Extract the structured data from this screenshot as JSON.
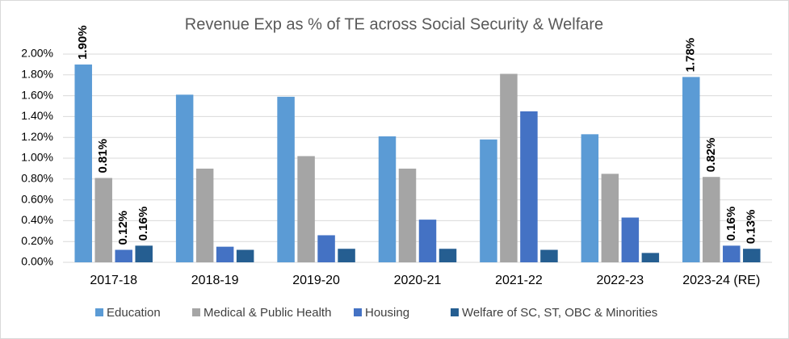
{
  "chart_data": {
    "type": "bar",
    "title": "Revenue  Exp as % of TE across Social Security & Welfare",
    "categories": [
      "2017-18",
      "2018-19",
      "2019-20",
      "2020-21",
      "2021-22",
      "2022-23",
      "2023-24 (RE)"
    ],
    "series": [
      {
        "name": "Education",
        "color": "#5b9bd5",
        "values": [
          1.9,
          1.61,
          1.59,
          1.21,
          1.18,
          1.23,
          1.78
        ],
        "value_labels": [
          "1.90%",
          null,
          null,
          null,
          null,
          null,
          "1.78%"
        ]
      },
      {
        "name": "Medical & Public Health",
        "color": "#a5a5a5",
        "values": [
          0.81,
          0.9,
          1.02,
          0.9,
          1.81,
          0.85,
          0.82
        ],
        "value_labels": [
          "0.81%",
          null,
          null,
          null,
          null,
          null,
          "0.82%"
        ]
      },
      {
        "name": "Housing",
        "color": "#4472c4",
        "values": [
          0.12,
          0.15,
          0.26,
          0.41,
          1.45,
          0.43,
          0.16
        ],
        "value_labels": [
          "0.12%",
          null,
          null,
          null,
          null,
          null,
          "0.16%"
        ]
      },
      {
        "name": "Welfare of SC, ST, OBC & Minorities",
        "color": "#255e91",
        "values": [
          0.16,
          0.12,
          0.13,
          0.13,
          0.12,
          0.09,
          0.13
        ],
        "value_labels": [
          "0.16%",
          null,
          null,
          null,
          null,
          null,
          "0.13%"
        ]
      }
    ],
    "ylim": [
      0,
      2.0
    ],
    "yticks": [
      {
        "value": 0,
        "label": "0.00%"
      },
      {
        "value": 0.2,
        "label": "0.20%"
      },
      {
        "value": 0.4,
        "label": "0.40%"
      },
      {
        "value": 0.6,
        "label": "0.60%"
      },
      {
        "value": 0.8,
        "label": "0.80%"
      },
      {
        "value": 1.0,
        "label": "1.00%"
      },
      {
        "value": 1.2,
        "label": "1.20%"
      },
      {
        "value": 1.4,
        "label": "1.40%"
      },
      {
        "value": 1.6,
        "label": "1.60%"
      },
      {
        "value": 1.8,
        "label": "1.80%"
      },
      {
        "value": 2.0,
        "label": "2.00%"
      }
    ],
    "grid": true,
    "legend": "bottom"
  }
}
